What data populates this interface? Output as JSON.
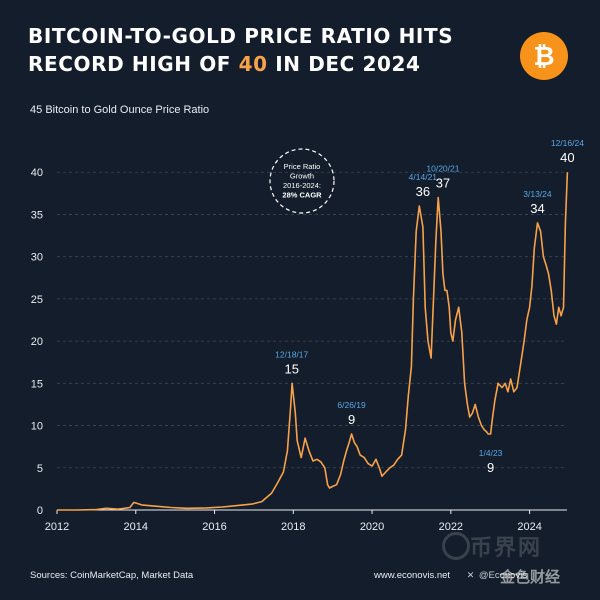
{
  "header": {
    "title_line1": "BITCOIN-TO-GOLD PRICE RATIO HITS",
    "title_line2_pre": "RECORD HIGH OF ",
    "title_line2_accent": "40",
    "title_line2_post": " IN DEC 2024"
  },
  "logo": {
    "icon": "bitcoin-icon",
    "glyph": "₿",
    "color": "#f7931a"
  },
  "colors": {
    "background": "#141d2b",
    "line": "#f7a24a",
    "date_annotation": "#5aa7e6",
    "value_annotation": "#ffffff",
    "grid": "#3a4658"
  },
  "chart_data": {
    "type": "line",
    "title": "Bitcoin to Gold Ounce Price Ratio",
    "y_axis_top_label": "45",
    "xlabel": "",
    "ylabel": "",
    "xlim": [
      2012,
      2024.95
    ],
    "ylim": [
      0,
      45
    ],
    "x_ticks": [
      2012,
      2014,
      2016,
      2018,
      2020,
      2022,
      2024
    ],
    "y_ticks": [
      0,
      5,
      10,
      15,
      20,
      25,
      30,
      35,
      40
    ],
    "grid": "horizontal dashed",
    "series": [
      {
        "x": [
          2012.0,
          2012.5,
          2013.0,
          2013.25,
          2013.55,
          2013.85,
          2013.95,
          2014.15,
          2014.5,
          2014.9,
          2015.3,
          2015.8,
          2016.2,
          2016.6,
          2016.95,
          2017.2,
          2017.45,
          2017.6,
          2017.75,
          2017.85,
          2017.93,
          2017.97,
          2018.05,
          2018.1,
          2018.2,
          2018.3,
          2018.4,
          2018.5,
          2018.6,
          2018.7,
          2018.8,
          2018.87,
          2018.92,
          2019.0,
          2019.1,
          2019.2,
          2019.28,
          2019.35,
          2019.42,
          2019.48,
          2019.55,
          2019.62,
          2019.7,
          2019.8,
          2019.9,
          2020.0,
          2020.1,
          2020.2,
          2020.25,
          2020.35,
          2020.45,
          2020.55,
          2020.65,
          2020.75,
          2020.85,
          2020.92,
          2021.0,
          2021.05,
          2021.12,
          2021.2,
          2021.29,
          2021.35,
          2021.42,
          2021.5,
          2021.56,
          2021.62,
          2021.68,
          2021.75,
          2021.8,
          2021.85,
          2021.9,
          2021.96,
          2022.0,
          2022.05,
          2022.12,
          2022.2,
          2022.28,
          2022.35,
          2022.42,
          2022.48,
          2022.55,
          2022.62,
          2022.7,
          2022.78,
          2022.85,
          2022.9,
          2022.95,
          2023.01,
          2023.06,
          2023.12,
          2023.2,
          2023.3,
          2023.38,
          2023.45,
          2023.52,
          2023.6,
          2023.68,
          2023.78,
          2023.86,
          2023.93,
          2024.0,
          2024.06,
          2024.12,
          2024.2,
          2024.28,
          2024.35,
          2024.42,
          2024.48,
          2024.55,
          2024.62,
          2024.68,
          2024.74,
          2024.8,
          2024.86,
          2024.91,
          2024.96
        ],
        "values": [
          0.0,
          0.0,
          0.05,
          0.2,
          0.1,
          0.3,
          0.9,
          0.6,
          0.45,
          0.3,
          0.2,
          0.25,
          0.35,
          0.55,
          0.7,
          1.0,
          2.0,
          3.2,
          4.5,
          7.0,
          12.0,
          15.0,
          11.5,
          8.2,
          6.2,
          8.5,
          7.0,
          5.8,
          6.0,
          5.7,
          5.0,
          3.0,
          2.6,
          2.8,
          3.0,
          4.2,
          5.8,
          7.0,
          8.0,
          9.0,
          8.0,
          7.5,
          6.5,
          6.2,
          5.5,
          5.2,
          6.0,
          4.8,
          4.0,
          4.5,
          5.0,
          5.3,
          6.0,
          6.5,
          9.5,
          13.5,
          17.0,
          25.0,
          33.0,
          36.0,
          33.5,
          24.0,
          20.0,
          18.0,
          25.0,
          32.0,
          37.0,
          33.0,
          28.0,
          26.0,
          26.0,
          24.0,
          21.0,
          20.0,
          22.5,
          24.0,
          21.0,
          15.0,
          12.5,
          11.0,
          11.5,
          12.5,
          11.0,
          10.0,
          9.5,
          9.3,
          9.0,
          9.0,
          11.0,
          13.0,
          15.0,
          14.5,
          15.0,
          14.0,
          15.5,
          14.0,
          14.5,
          17.5,
          20.0,
          22.5,
          24.0,
          26.5,
          31.0,
          34.0,
          33.0,
          30.0,
          29.0,
          28.0,
          26.0,
          23.0,
          22.0,
          24.0,
          23.0,
          24.0,
          34.0,
          40.0
        ]
      }
    ],
    "annotations": [
      {
        "date": "12/18/17",
        "value": "15",
        "x": 2017.96,
        "y": 15
      },
      {
        "date": "6/26/19",
        "value": "9",
        "x": 2019.48,
        "y": 9
      },
      {
        "date": "4/14/21",
        "value": "36",
        "x": 2021.29,
        "y": 36
      },
      {
        "date": "10/20/21",
        "value": "37",
        "x": 2021.8,
        "y": 37
      },
      {
        "date": "1/4/23",
        "value": "9",
        "x": 2023.01,
        "y": 9
      },
      {
        "date": "3/13/24",
        "value": "34",
        "x": 2024.2,
        "y": 34
      },
      {
        "date": "12/16/24",
        "value": "40",
        "x": 2024.96,
        "y": 40
      }
    ],
    "callout": {
      "line1": "Price Ratio",
      "line2": "Growth",
      "line3": "2016-2024:",
      "line4": "28% CAGR"
    }
  },
  "footer": {
    "sources": "Sources: CoinMarketCap, Market Data",
    "website": "www.econovis.net",
    "social_icon": "x-icon",
    "handle": "@Econovis"
  },
  "watermark": {
    "text1": "币界网",
    "text2": "金色财经"
  }
}
